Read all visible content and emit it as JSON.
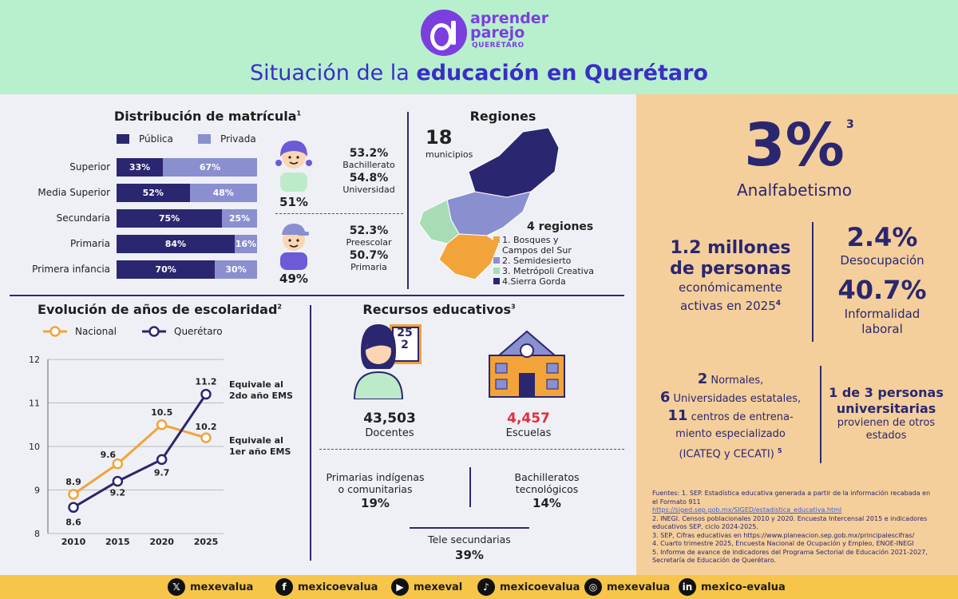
{
  "header": {
    "logo_line1": "aprender",
    "logo_line2": "parejo",
    "logo_sub": "QUERÉTARO",
    "title_plain": "Situación de la ",
    "title_bold": "educación en Querétaro"
  },
  "matricula": {
    "title": "Distribución de matrícula",
    "title_note": "1",
    "legend_public": "Pública",
    "legend_private": "Privada",
    "colors": {
      "public": "#2b2670",
      "private": "#8a8fd0"
    },
    "rows": [
      {
        "label": "Superior",
        "public": 33,
        "private": 67,
        "public_text": "33%",
        "private_text": "67%"
      },
      {
        "label": "Media Superior",
        "public": 52,
        "private": 48,
        "public_text": "52%",
        "private_text": "48%"
      },
      {
        "label": "Secundaria",
        "public": 75,
        "private": 25,
        "public_text": "75%",
        "private_text": "25%"
      },
      {
        "label": "Primaria",
        "public": 84,
        "private": 16,
        "public_text": "84%",
        "private_text": "16%"
      },
      {
        "label": "Primera infancia",
        "public": 70,
        "private": 30,
        "public_text": "70%",
        "private_text": "30%"
      }
    ],
    "girl_pct": "51%",
    "boy_pct": "49%",
    "girl_stats": [
      {
        "value": "53.2%",
        "label": "Bachillerato"
      },
      {
        "value": "54.8%",
        "label": "Universidad"
      }
    ],
    "boy_stats": [
      {
        "value": "52.3%",
        "label": "Preescolar"
      },
      {
        "value": "50.7%",
        "label": "Primaria"
      }
    ]
  },
  "regiones": {
    "title": "Regiones",
    "municipios_count": "18",
    "municipios_label": "municipios",
    "count_label": "4 regiones",
    "items": [
      {
        "label": "1. Bosques y",
        "label2": "Campos del Sur",
        "color": "#f2a33a"
      },
      {
        "label": "2. Semidesierto",
        "label2": "",
        "color": "#8a8fd0"
      },
      {
        "label": "3. Metrópoli Creativa",
        "label2": "",
        "color": "#a8dcb5"
      },
      {
        "label": "4.Sierra Gorda",
        "label2": "",
        "color": "#2b2670"
      }
    ]
  },
  "escolaridad": {
    "title": "Evolución de años de escolaridad",
    "title_note": "2",
    "legend_nacional": "Nacional",
    "legend_queretaro": "Querétaro",
    "annot_top_1": "Equivale al",
    "annot_top_2": "2do año EMS",
    "annot_bot_1": "Equivale al",
    "annot_bot_2": "1er año EMS"
  },
  "chart_data": {
    "type": "line",
    "x": [
      "2010",
      "2015",
      "2020",
      "2025"
    ],
    "series": [
      {
        "name": "Nacional",
        "values": [
          8.9,
          9.6,
          10.5,
          10.2
        ],
        "color": "#f2a33a"
      },
      {
        "name": "Querétaro",
        "values": [
          8.6,
          9.2,
          9.7,
          11.2
        ],
        "color": "#2b2670"
      }
    ],
    "yticks": [
      "8",
      "9",
      "10",
      "11",
      "12"
    ],
    "ylim": [
      8,
      12
    ],
    "value_labels_nacional": [
      "8.9",
      "9.6",
      "10.5",
      "10.2"
    ],
    "value_labels_queretaro": [
      "8.6",
      "9.2",
      "9.7",
      "11.2"
    ]
  },
  "recursos": {
    "title": "Recursos educativos",
    "title_note": "3",
    "calendar_top": "25",
    "calendar_bottom": "2",
    "docentes_value": "43,503",
    "docentes_label": "Docentes",
    "escuelas_value": "4,457",
    "escuelas_label": "Escuelas",
    "escuelas_color": "#e0303a",
    "indigenas_label_1": "Primarias indígenas",
    "indigenas_label_2": "o comunitarias",
    "indigenas_value": "19%",
    "tecnologicos_label_1": "Bachilleratos",
    "tecnologicos_label_2": "tecnológicos",
    "tecnologicos_value": "14%",
    "tele_label": "Tele secundarias",
    "tele_value": "39%"
  },
  "right_panel": {
    "analfabetismo_value": "3%",
    "analfabetismo_note": "3",
    "analfabetismo_label": "Analfabetismo",
    "pea_line1": "1.2 millones",
    "pea_line2": "de personas",
    "pea_line3": "económicamente",
    "pea_line4": "activas en 2025",
    "pea_note": "4",
    "desocupacion_value": "2.4%",
    "desocupacion_label": "Desocupación",
    "informalidad_value": "40.7%",
    "informalidad_label_1": "Informalidad",
    "informalidad_label_2": "laboral",
    "normales_num": "2",
    "normales_label": "Normales,",
    "univ_num": "6",
    "univ_label": "Universidades estatales,",
    "centros_num": "11",
    "centros_label": "centros de entrena-",
    "centros_label_2": "miento especializado",
    "centros_label_3": "(ICATEQ y CECATI)",
    "centros_note": "5",
    "universitarias_1": "1 de 3 personas",
    "universitarias_2": "universitarias",
    "universitarias_3": "provienen de otros",
    "universitarias_4": "estados",
    "sources": [
      "Fuentes: 1. SEP. Estadística educativa generada a partir de la información recabada en",
      "el Formato 911",
      "https://siged.sep.gob.mx/SIGED/estadistica_educativa.html",
      "2. INEGI. Censos poblacionales 2010 y 2020. Encuesta Intercensal 2015 e indicadores",
      "educativos SEP, ciclo 2024-2025.",
      "3. SEP, Cifras educativas en https://www.planeacion.sep.gob.mx/principalescifras/",
      "4. Cuarto trimestre 2025, Encuesta Nacional de Ocupación y Empleo, ENOE-INEGI",
      "5. Informe de avance de indicadores del Programa Sectorial de Educación 2021-2027,",
      "Secretaría de Educación de Querétaro."
    ]
  },
  "footer": {
    "social": [
      {
        "icon": "x-icon",
        "glyph": "𝕏",
        "handle": "mexevalua"
      },
      {
        "icon": "facebook-icon",
        "glyph": "f",
        "handle": "mexicoevalua"
      },
      {
        "icon": "youtube-icon",
        "glyph": "▶",
        "handle": "mexeval"
      },
      {
        "icon": "tiktok-icon",
        "glyph": "♪",
        "handle": "mexicoevalua"
      },
      {
        "icon": "instagram-icon",
        "glyph": "◎",
        "handle": "mexevalua"
      },
      {
        "icon": "linkedin-icon",
        "glyph": "in",
        "handle": "mexico-evalua"
      }
    ]
  }
}
